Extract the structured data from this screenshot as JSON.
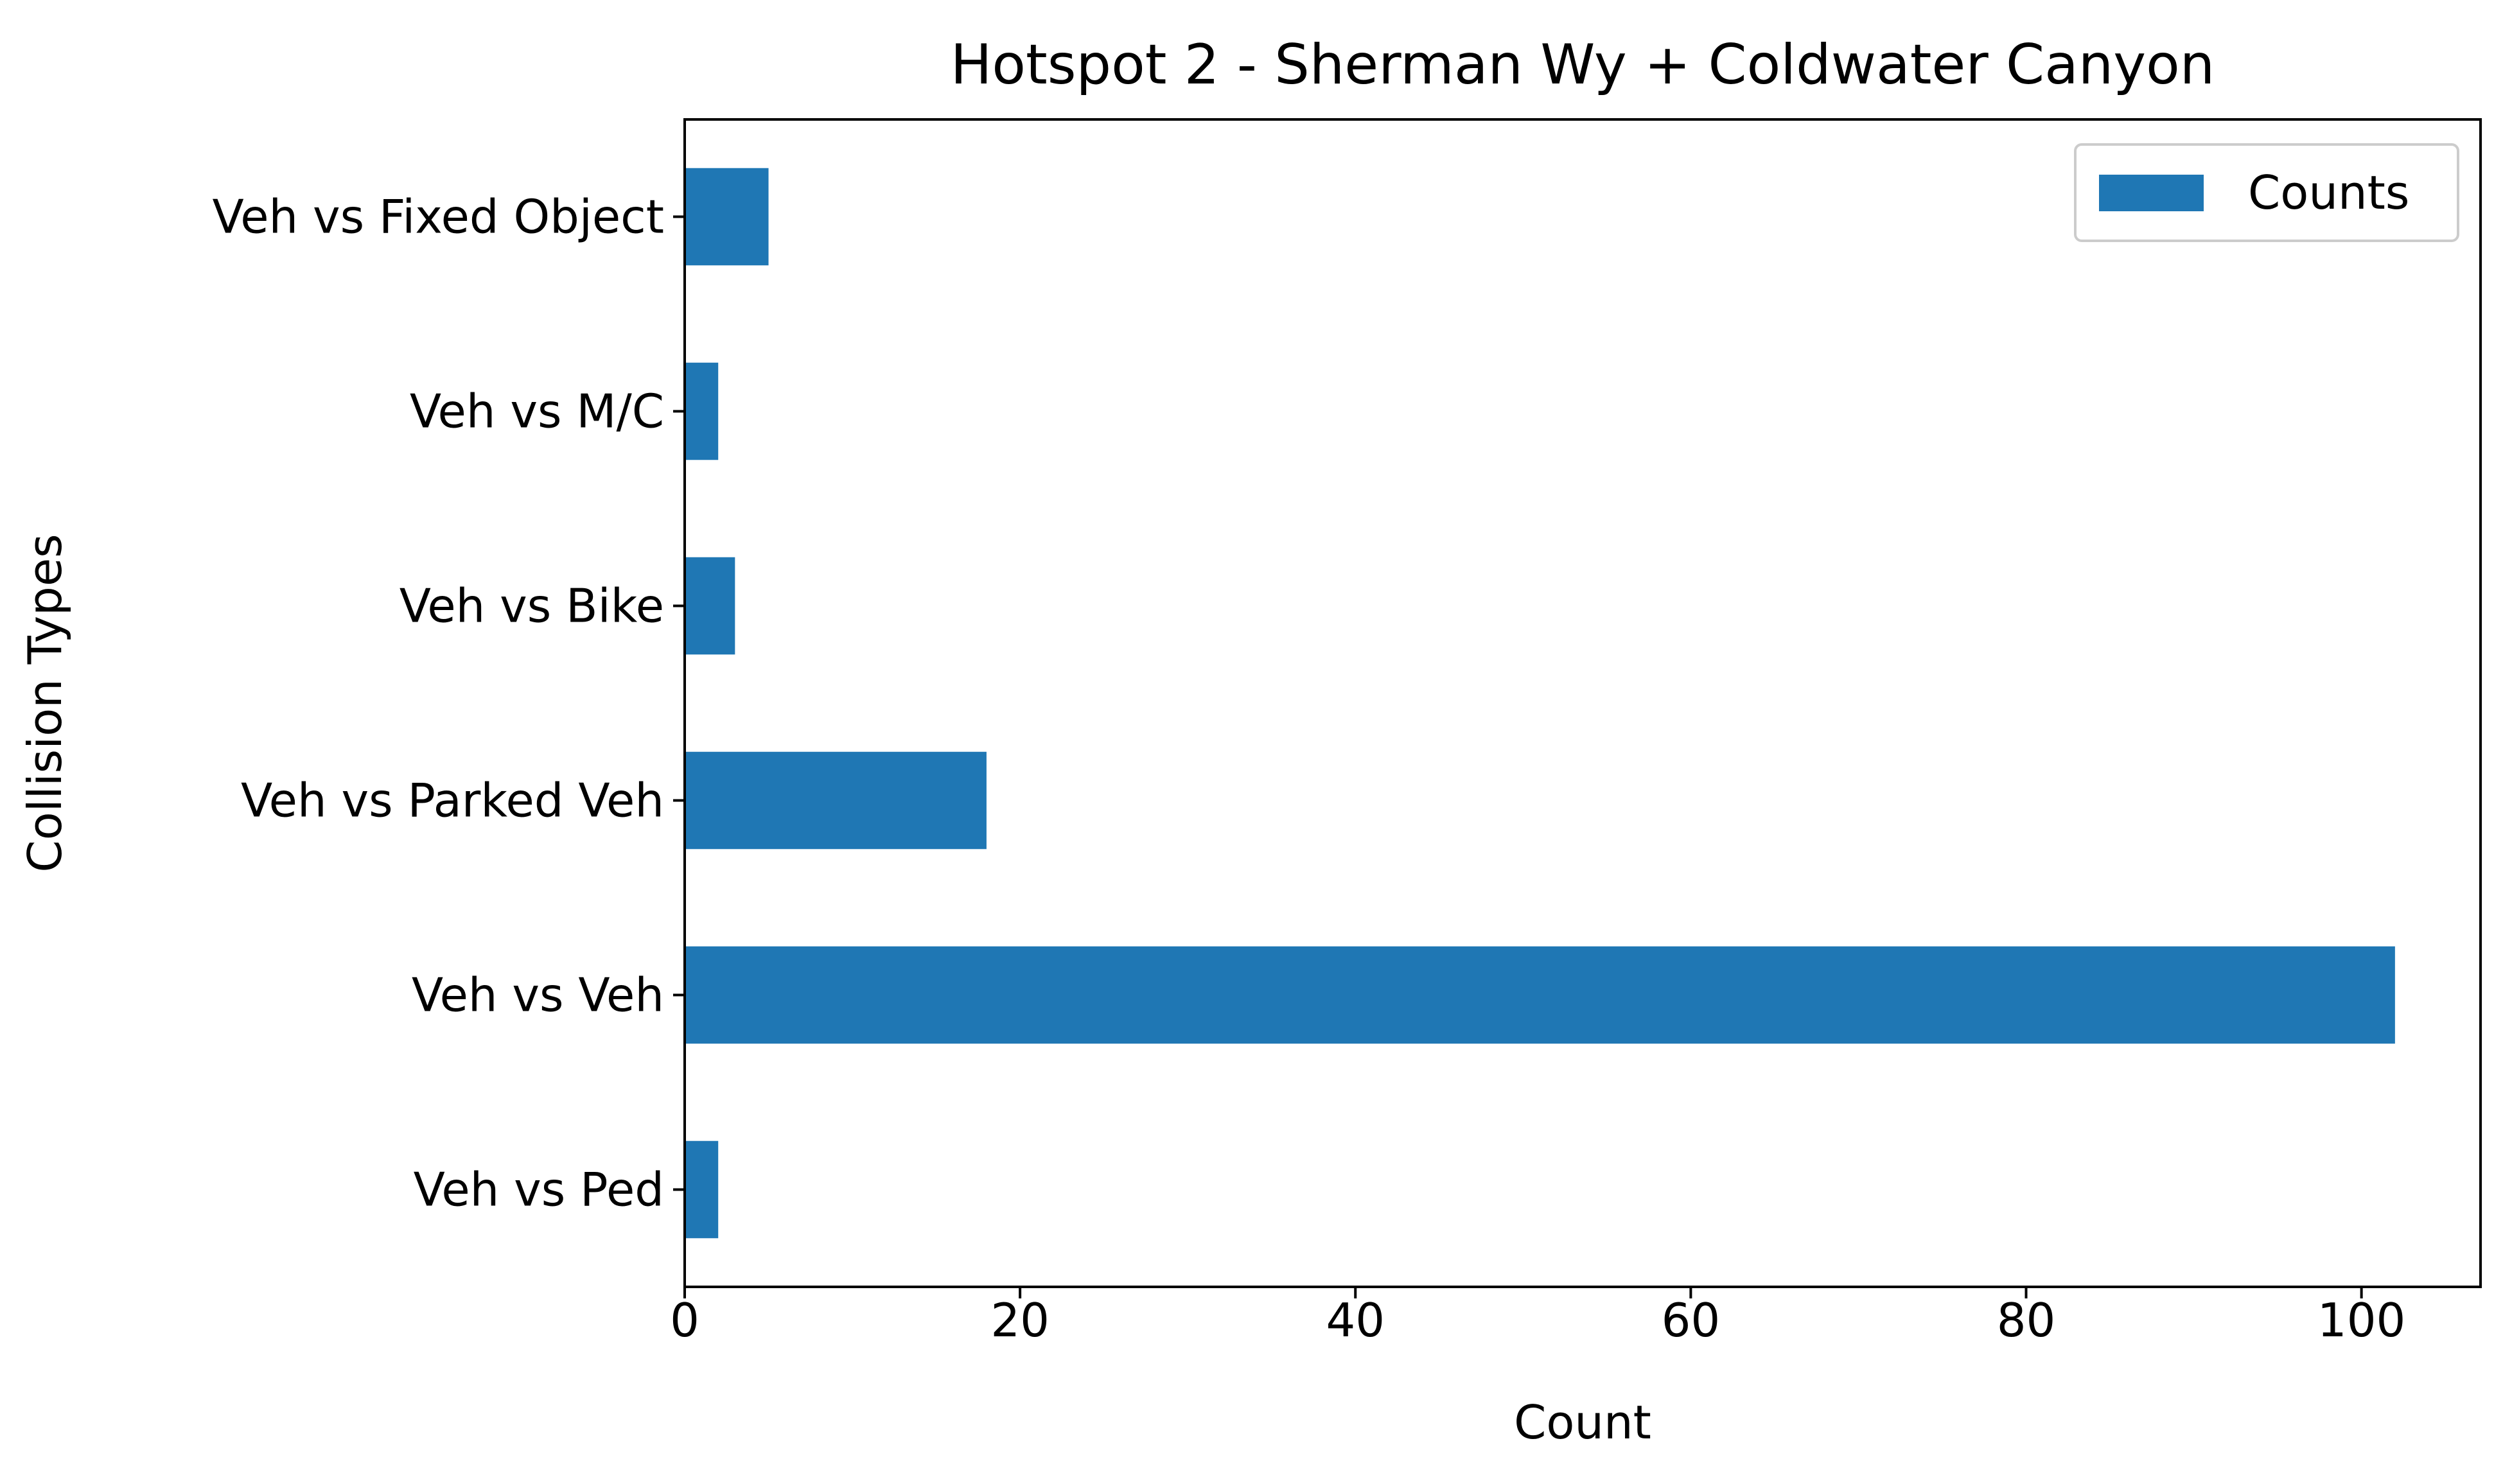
{
  "chart_data": {
    "type": "bar",
    "orientation": "horizontal",
    "title": "Hotspot 2 - Sherman Wy + Coldwater Canyon",
    "xlabel": "Count",
    "ylabel": "Collision Types",
    "categories": [
      "Veh vs Ped",
      "Veh vs Veh",
      "Veh vs Parked Veh",
      "Veh vs Bike",
      "Veh vs M/C",
      "Veh vs Fixed Object"
    ],
    "series": [
      {
        "name": "Counts",
        "values": [
          2,
          102,
          18,
          3,
          2,
          5
        ],
        "color": "#1f77b4"
      }
    ],
    "xlim": [
      0,
      107.1
    ],
    "xticks": [
      0,
      20,
      40,
      60,
      80,
      100
    ],
    "grid": false,
    "legend_position": "top-right"
  }
}
